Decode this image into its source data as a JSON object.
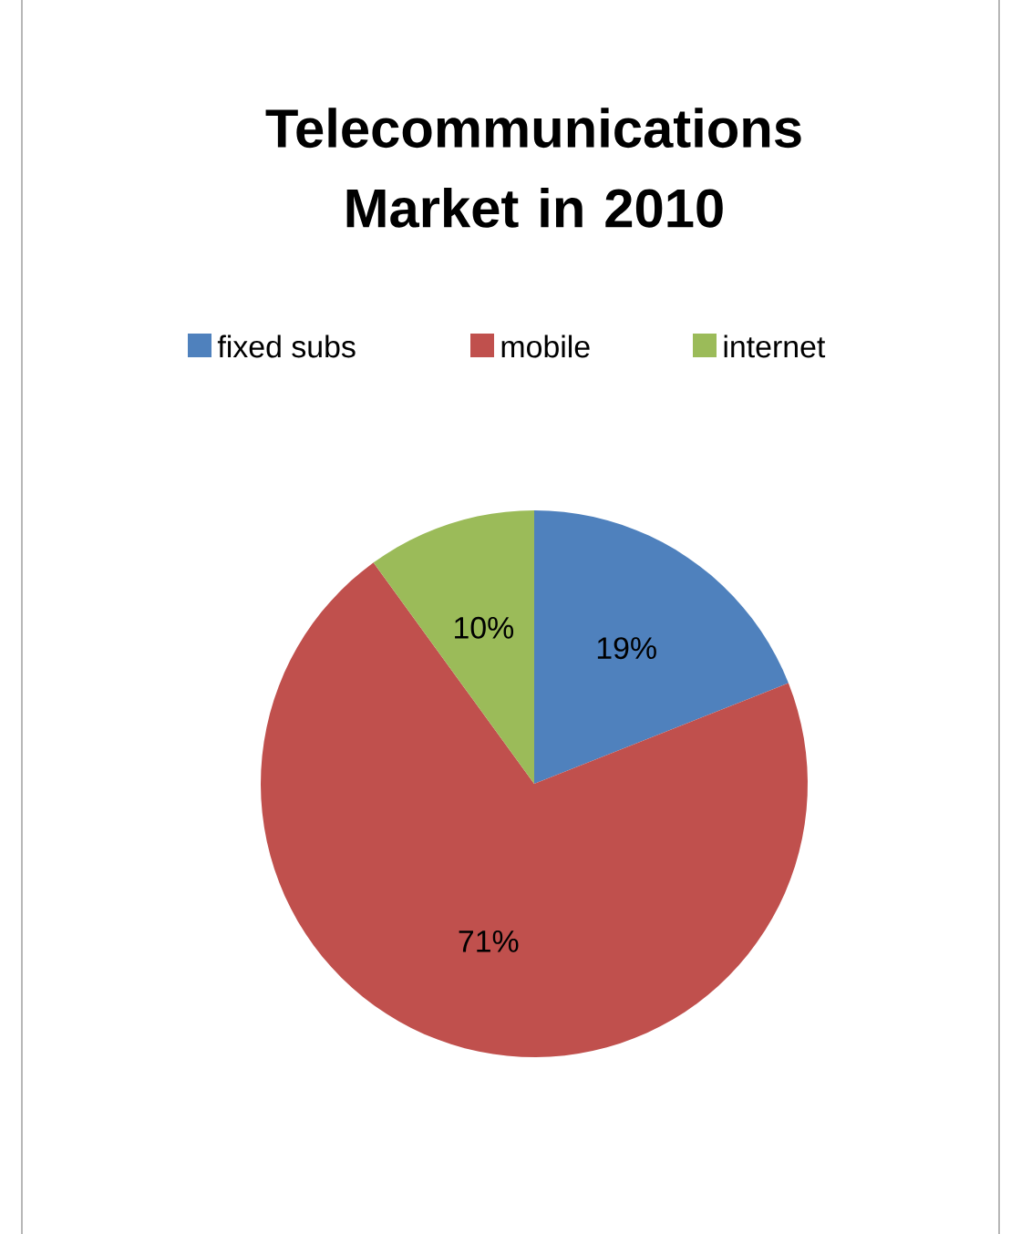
{
  "chart_data": {
    "type": "pie",
    "title": "Telecommunications Market in 2010",
    "categories": [
      "fixed subs",
      "mobile",
      "internet"
    ],
    "values": [
      19,
      71,
      10
    ],
    "colors": [
      "#4f81bd",
      "#c0504d",
      "#9bbb59"
    ],
    "value_labels": [
      "19%",
      "71%",
      "10%"
    ],
    "legend": "top"
  }
}
